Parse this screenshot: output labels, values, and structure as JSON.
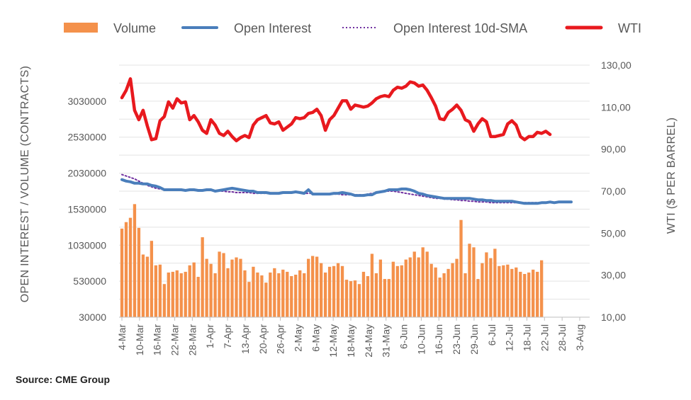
{
  "chart_data": {
    "type": "bar",
    "legend": [
      "Volume",
      "Open Interest",
      "Open Interest 10d-SMA",
      "WTI"
    ],
    "legend_position": "top",
    "left_axis": {
      "label": "OPEN INTEREST / VOLUME (CONTRACTS)",
      "ticks": [
        "30000",
        "530000",
        "1030000",
        "1530000",
        "2030000",
        "2530000",
        "3030000"
      ],
      "range": [
        30000,
        3530000
      ]
    },
    "right_axis": {
      "label": "WTI ($ PER BARREL)",
      "ticks": [
        "10,00",
        "30,00",
        "50,00",
        "70,00",
        "90,00",
        "110,00",
        "130,00"
      ],
      "range": [
        10,
        130
      ]
    },
    "x_tick_labels": [
      "4-Mar",
      "10-Mar",
      "16-Mar",
      "22-Mar",
      "28-Mar",
      "1-Apr",
      "7-Apr",
      "13-Apr",
      "20-Apr",
      "26-Apr",
      "2-May",
      "6-May",
      "12-May",
      "18-May",
      "24-May",
      "31-May",
      "6-Jun",
      "10-Jun",
      "16-Jun",
      "23-Jun",
      "29-Jun",
      "6-Jul",
      "12-Jul",
      "18-Jul",
      "22-Jul",
      "28-Jul",
      "3-Aug"
    ],
    "grid": "horizontal",
    "series": [
      {
        "name": "Volume",
        "type": "bar",
        "axis": "left",
        "color": "#F4914B",
        "values": [
          1260000,
          1350000,
          1410000,
          1600000,
          1270000,
          900000,
          870000,
          1090000,
          750000,
          760000,
          490000,
          650000,
          660000,
          680000,
          640000,
          660000,
          750000,
          790000,
          590000,
          1140000,
          840000,
          770000,
          640000,
          940000,
          920000,
          710000,
          830000,
          860000,
          840000,
          680000,
          520000,
          730000,
          650000,
          610000,
          510000,
          650000,
          710000,
          640000,
          690000,
          660000,
          600000,
          620000,
          680000,
          640000,
          840000,
          880000,
          870000,
          780000,
          650000,
          730000,
          740000,
          780000,
          740000,
          550000,
          530000,
          540000,
          490000,
          660000,
          600000,
          910000,
          640000,
          830000,
          560000,
          560000,
          800000,
          740000,
          750000,
          830000,
          860000,
          940000,
          860000,
          1000000,
          940000,
          770000,
          720000,
          580000,
          640000,
          700000,
          780000,
          840000,
          1380000,
          640000,
          1050000,
          1000000,
          560000,
          780000,
          930000,
          850000,
          980000,
          740000,
          750000,
          760000,
          700000,
          720000,
          660000,
          630000,
          650000,
          690000,
          660000,
          820000
        ]
      },
      {
        "name": "Open Interest",
        "type": "line",
        "axis": "left",
        "color": "#4A7EBB",
        "values": [
          1940000,
          1920000,
          1910000,
          1890000,
          1890000,
          1880000,
          1880000,
          1860000,
          1850000,
          1830000,
          1800000,
          1800000,
          1800000,
          1800000,
          1800000,
          1790000,
          1800000,
          1800000,
          1790000,
          1790000,
          1800000,
          1800000,
          1780000,
          1790000,
          1800000,
          1810000,
          1820000,
          1810000,
          1800000,
          1790000,
          1780000,
          1780000,
          1760000,
          1760000,
          1760000,
          1750000,
          1750000,
          1750000,
          1760000,
          1760000,
          1760000,
          1770000,
          1760000,
          1750000,
          1800000,
          1740000,
          1740000,
          1740000,
          1740000,
          1740000,
          1750000,
          1750000,
          1760000,
          1750000,
          1740000,
          1720000,
          1720000,
          1720000,
          1730000,
          1730000,
          1760000,
          1770000,
          1780000,
          1800000,
          1800000,
          1800000,
          1810000,
          1810000,
          1800000,
          1780000,
          1750000,
          1740000,
          1720000,
          1710000,
          1700000,
          1690000,
          1680000,
          1680000,
          1680000,
          1680000,
          1680000,
          1680000,
          1680000,
          1670000,
          1660000,
          1660000,
          1650000,
          1650000,
          1640000,
          1640000,
          1640000,
          1640000,
          1640000,
          1630000,
          1620000,
          1610000,
          1610000,
          1610000,
          1610000,
          1620000,
          1620000,
          1630000,
          1620000,
          1630000,
          1630000,
          1630000,
          1630000
        ]
      },
      {
        "name": "Open Interest 10d-SMA",
        "type": "line",
        "style": "dotted",
        "axis": "left",
        "color": "#7030A0",
        "values": [
          2010000,
          1990000,
          1970000,
          1950000,
          1920000,
          1890000,
          1860000,
          1840000,
          1820000,
          1810000,
          1800000,
          1790000,
          1790000,
          1790000,
          1790000,
          1790000,
          1790000,
          1790000,
          1800000,
          1800000,
          1800000,
          1800000,
          1790000,
          1780000,
          1780000,
          1770000,
          1770000,
          1760000,
          1760000,
          1760000,
          1760000,
          1750000,
          1750000,
          1750000,
          1750000,
          1750000,
          1750000,
          1750000,
          1760000,
          1760000,
          1760000,
          1760000,
          1760000,
          1750000,
          1750000,
          1750000,
          1740000,
          1740000,
          1740000,
          1740000,
          1740000,
          1740000,
          1730000,
          1730000,
          1730000,
          1730000,
          1730000,
          1730000,
          1740000,
          1750000,
          1760000,
          1770000,
          1780000,
          1780000,
          1780000,
          1770000,
          1760000,
          1750000,
          1740000,
          1730000,
          1720000,
          1710000,
          1700000,
          1690000,
          1680000,
          1680000,
          1670000,
          1670000,
          1660000,
          1660000,
          1650000,
          1650000,
          1640000,
          1640000,
          1630000,
          1630000,
          1630000,
          1620000,
          1620000,
          1620000,
          1620000,
          1620000,
          1620000,
          1620000,
          1620000,
          1620000,
          1620000,
          1620000,
          1620000,
          1620000
        ]
      },
      {
        "name": "WTI",
        "type": "line",
        "axis": "right",
        "color": "#E8191E",
        "values": [
          114.5,
          118.0,
          123.5,
          108.5,
          104.0,
          108.5,
          101.0,
          94.5,
          95.0,
          103.5,
          105.5,
          112.5,
          109.5,
          114.0,
          112.0,
          112.5,
          104.0,
          106.0,
          103.0,
          99.0,
          97.5,
          104.0,
          101.5,
          97.5,
          96.5,
          98.5,
          96.0,
          94.0,
          95.5,
          96.5,
          95.5,
          101.5,
          104.0,
          105.0,
          106.0,
          102.5,
          102.0,
          103.0,
          99.0,
          100.5,
          102.0,
          105.0,
          104.5,
          105.0,
          107.0,
          107.5,
          109.0,
          106.0,
          99.0,
          104.0,
          106.0,
          109.5,
          113.0,
          113.0,
          109.0,
          111.0,
          110.5,
          110.0,
          110.5,
          112.0,
          114.0,
          115.0,
          115.5,
          115.0,
          118.0,
          119.5,
          119.0,
          120.0,
          122.0,
          121.5,
          120.0,
          120.5,
          118.0,
          114.5,
          110.5,
          104.5,
          104.0,
          107.5,
          109.0,
          111.0,
          108.5,
          104.0,
          103.0,
          98.5,
          102.0,
          104.5,
          103.0,
          96.0,
          96.0,
          96.5,
          97.0,
          102.0,
          103.5,
          101.5,
          96.0,
          94.5,
          96.0,
          96.0,
          98.0,
          97.5,
          98.5,
          97.0
        ]
      }
    ]
  },
  "source": "Source: CME Group"
}
